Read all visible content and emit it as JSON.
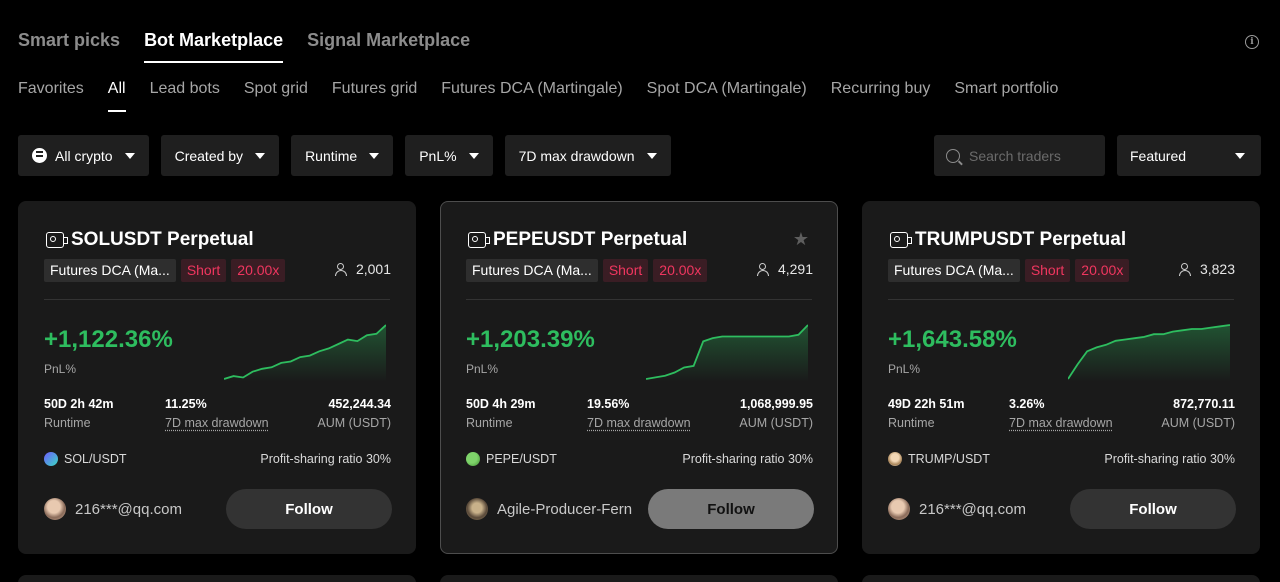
{
  "top_tabs": [
    {
      "label": "Smart picks",
      "active": false
    },
    {
      "label": "Bot Marketplace",
      "active": true
    },
    {
      "label": "Signal Marketplace",
      "active": false
    }
  ],
  "sub_tabs": [
    {
      "label": "Favorites"
    },
    {
      "label": "All"
    },
    {
      "label": "Lead bots"
    },
    {
      "label": "Spot grid"
    },
    {
      "label": "Futures grid"
    },
    {
      "label": "Futures DCA (Martingale)"
    },
    {
      "label": "Spot DCA (Martingale)"
    },
    {
      "label": "Recurring buy"
    },
    {
      "label": "Smart portfolio"
    }
  ],
  "filters": {
    "crypto": "All crypto",
    "created_by": "Created by",
    "runtime": "Runtime",
    "pnl": "PnL%",
    "drawdown": "7D max drawdown"
  },
  "search": {
    "placeholder": "Search traders"
  },
  "sort": {
    "label": "Featured"
  },
  "labels": {
    "pnl": "PnL%",
    "runtime": "Runtime",
    "drawdown": "7D max drawdown",
    "aum": "AUM (USDT)",
    "follow": "Follow"
  },
  "colors": {
    "pnl_green": "#2ebd5f",
    "short_red": "#f0365f"
  },
  "cards": [
    {
      "title": "SOLUSDT Perpetual",
      "type": "Futures DCA (Ma...",
      "direction": "Short",
      "leverage": "20.00x",
      "followers": "2,001",
      "pnl": "+1,122.36%",
      "runtime": "50D 2h 42m",
      "drawdown": "11.25%",
      "aum": "452,244.34",
      "pair": "SOL/USDT",
      "pair_icon": "sol-coin-icon",
      "profit_sharing": "Profit-sharing ratio 30%",
      "trader": "216***@qq.com",
      "sparkline": [
        3,
        5,
        4,
        8,
        10,
        11,
        14,
        15,
        18,
        19,
        22,
        24,
        27,
        30,
        29,
        33,
        34,
        40
      ]
    },
    {
      "title": "PEPEUSDT Perpetual",
      "type": "Futures DCA (Ma...",
      "direction": "Short",
      "leverage": "20.00x",
      "followers": "4,291",
      "pnl": "+1,203.39%",
      "runtime": "50D 4h 29m",
      "drawdown": "19.56%",
      "aum": "1,068,999.95",
      "pair": "PEPE/USDT",
      "pair_icon": "pepe-coin-icon",
      "profit_sharing": "Profit-sharing ratio 30%",
      "trader": "Agile-Producer-Fern",
      "sparkline": [
        1,
        2,
        3,
        5,
        8,
        9,
        24,
        26,
        27,
        27,
        27,
        27,
        27,
        27,
        27,
        27,
        28,
        34
      ]
    },
    {
      "title": "TRUMPUSDT Perpetual",
      "type": "Futures DCA (Ma...",
      "direction": "Short",
      "leverage": "20.00x",
      "followers": "3,823",
      "pnl": "+1,643.58%",
      "runtime": "49D 22h 51m",
      "drawdown": "3.26%",
      "aum": "872,770.11",
      "pair": "TRUMP/USDT",
      "pair_icon": "trump-coin-icon",
      "profit_sharing": "Profit-sharing ratio 30%",
      "trader": "216***@qq.com",
      "sparkline": [
        1,
        12,
        22,
        25,
        27,
        30,
        31,
        32,
        33,
        35,
        35,
        37,
        38,
        39,
        39,
        40,
        41,
        42
      ]
    }
  ]
}
